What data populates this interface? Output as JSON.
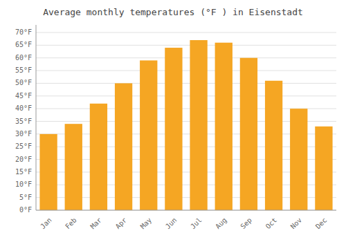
{
  "chart_data": {
    "type": "bar",
    "title": "Average monthly temperatures (°F ) in Eisenstadt",
    "categories": [
      "Jan",
      "Feb",
      "Mar",
      "Apr",
      "May",
      "Jun",
      "Jul",
      "Aug",
      "Sep",
      "Oct",
      "Nov",
      "Dec"
    ],
    "values": [
      30,
      34,
      42,
      50,
      59,
      64,
      67,
      66,
      60,
      51,
      40,
      33
    ],
    "color": "#F5A623",
    "ylim": [
      0,
      73
    ],
    "yticks": [
      {
        "value": 0,
        "label": "0°F"
      },
      {
        "value": 5,
        "label": "5°F"
      },
      {
        "value": 10,
        "label": "10°F"
      },
      {
        "value": 15,
        "label": "15°F"
      },
      {
        "value": 20,
        "label": "20°F"
      },
      {
        "value": 25,
        "label": "25°F"
      },
      {
        "value": 30,
        "label": "30°F"
      },
      {
        "value": 35,
        "label": "35°F"
      },
      {
        "value": 40,
        "label": "40°F"
      },
      {
        "value": 45,
        "label": "45°F"
      },
      {
        "value": 50,
        "label": "50°F"
      },
      {
        "value": 55,
        "label": "55°F"
      },
      {
        "value": 60,
        "label": "60°F"
      },
      {
        "value": 65,
        "label": "65°F"
      },
      {
        "value": 70,
        "label": "70°F"
      }
    ],
    "grid": true
  }
}
